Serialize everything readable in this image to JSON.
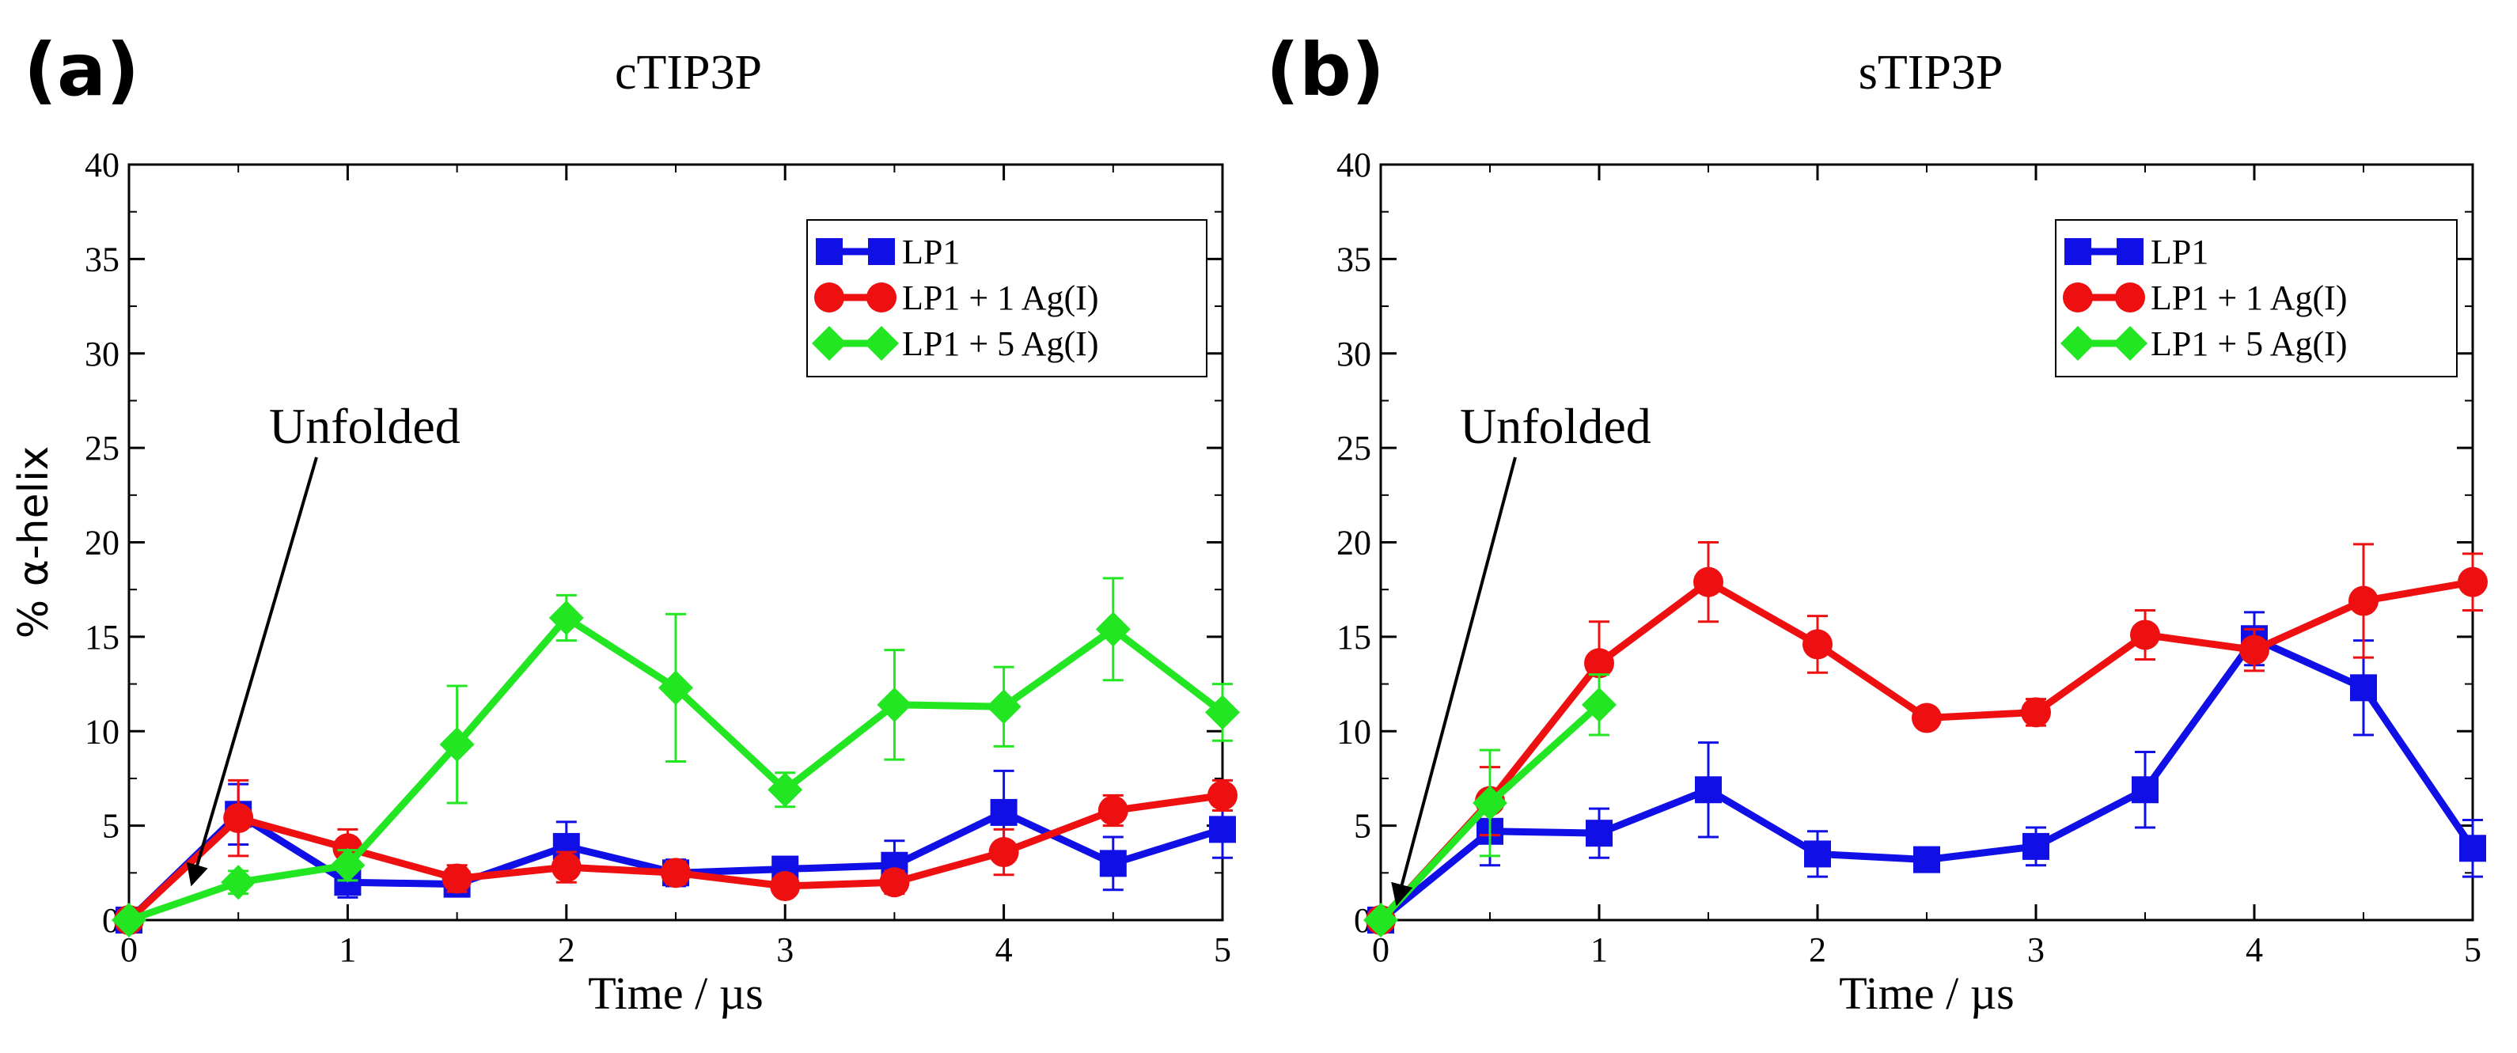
{
  "colors": {
    "lp1": "#1010e6",
    "lp1_1ag": "#ee1010",
    "lp1_5ag": "#22e622"
  },
  "chart_data": [
    {
      "panel": "(a)",
      "type": "line",
      "title": "cTIP3P",
      "xlabel": "Time /  µs",
      "ylabel": "% α-helix",
      "xlim": [
        0,
        5
      ],
      "ylim": [
        0,
        40
      ],
      "xticks": [
        0,
        1,
        2,
        3,
        4,
        5
      ],
      "yticks": [
        0,
        5,
        10,
        15,
        20,
        25,
        30,
        35,
        40
      ],
      "legend_position": "top-right",
      "annotation": "Unfolded",
      "series": [
        {
          "name": "LP1",
          "color": "#1010e6",
          "marker": "square",
          "x": [
            0,
            0.5,
            1,
            1.5,
            2,
            2.5,
            3,
            3.5,
            4,
            4.5,
            5
          ],
          "y": [
            0,
            5.6,
            2.0,
            1.9,
            3.9,
            2.5,
            2.7,
            2.9,
            5.7,
            3.0,
            4.8
          ],
          "err": [
            0,
            1.6,
            0.8,
            0.5,
            1.3,
            0.7,
            0.6,
            1.3,
            2.2,
            1.4,
            1.5
          ]
        },
        {
          "name": "LP1 + 1 Ag(I)",
          "color": "#ee1010",
          "marker": "circle",
          "x": [
            0,
            0.5,
            1,
            1.5,
            2,
            2.5,
            3,
            3.5,
            4,
            4.5,
            5
          ],
          "y": [
            0,
            5.4,
            3.8,
            2.2,
            2.8,
            2.5,
            1.8,
            2.0,
            3.6,
            5.8,
            6.6
          ],
          "err": [
            0,
            2.0,
            1.0,
            0.7,
            0.8,
            0.6,
            0.5,
            0.6,
            1.2,
            0.8,
            0.8
          ]
        },
        {
          "name": "LP1 + 5 Ag(I)",
          "color": "#22e622",
          "marker": "diamond",
          "x": [
            0,
            0.5,
            1,
            1.5,
            2,
            2.5,
            3,
            3.5,
            4,
            4.5,
            5
          ],
          "y": [
            0,
            2.0,
            2.9,
            9.3,
            16.0,
            12.3,
            6.9,
            11.4,
            11.3,
            15.4,
            11.0
          ],
          "err": [
            0,
            0.6,
            0.8,
            3.1,
            1.2,
            3.9,
            0.9,
            2.9,
            2.1,
            2.7,
            1.5
          ]
        }
      ]
    },
    {
      "panel": "(b)",
      "type": "line",
      "title": "sTIP3P",
      "xlabel": "Time /  µs",
      "ylabel": "",
      "xlim": [
        0,
        5
      ],
      "ylim": [
        0,
        40
      ],
      "xticks": [
        0,
        1,
        2,
        3,
        4,
        5
      ],
      "yticks": [
        0,
        5,
        10,
        15,
        20,
        25,
        30,
        35,
        40
      ],
      "legend_position": "top-right",
      "annotation": "Unfolded",
      "series": [
        {
          "name": "LP1",
          "color": "#1010e6",
          "marker": "square",
          "x": [
            0,
            0.5,
            1,
            1.5,
            2,
            2.5,
            3,
            3.5,
            4,
            4.5,
            5
          ],
          "y": [
            0,
            4.7,
            4.6,
            6.9,
            3.5,
            3.2,
            3.9,
            6.9,
            14.9,
            12.3,
            3.8
          ],
          "err": [
            0,
            1.8,
            1.3,
            2.5,
            1.2,
            0.6,
            1.0,
            2.0,
            1.4,
            2.5,
            1.5
          ]
        },
        {
          "name": "LP1 + 1 Ag(I)",
          "color": "#ee1010",
          "marker": "circle",
          "x": [
            0,
            0.5,
            1,
            1.5,
            2,
            2.5,
            3,
            3.5,
            4,
            4.5,
            5
          ],
          "y": [
            0,
            6.3,
            13.6,
            17.9,
            14.6,
            10.7,
            11.0,
            15.1,
            14.3,
            16.9,
            17.9
          ],
          "err": [
            0,
            1.8,
            2.2,
            2.1,
            1.5,
            0.5,
            0.7,
            1.3,
            1.1,
            3.0,
            1.5
          ]
        },
        {
          "name": "LP1 + 5 Ag(I)",
          "color": "#22e622",
          "marker": "diamond",
          "x": [
            0,
            0.5,
            1
          ],
          "y": [
            0,
            6.2,
            11.4
          ],
          "err": [
            0,
            2.8,
            1.6
          ]
        }
      ]
    }
  ]
}
